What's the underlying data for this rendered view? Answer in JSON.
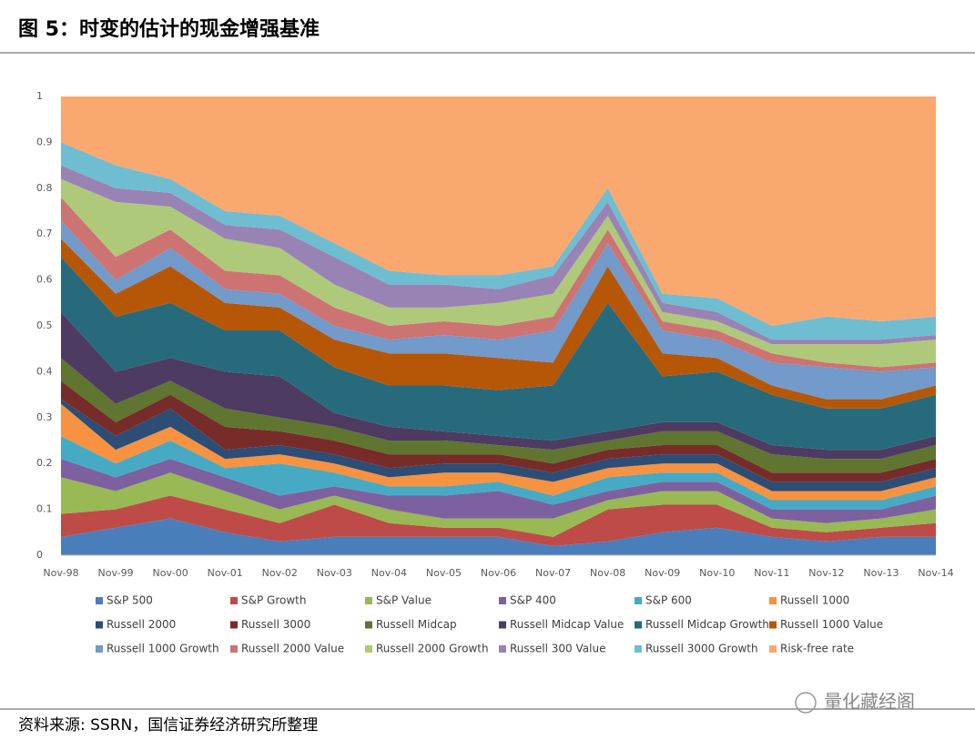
{
  "header": {
    "title": "图 5：时变的估计的现金增强基准"
  },
  "chart_data": {
    "type": "stacked-area",
    "categories": [
      "Nov-98",
      "Nov-99",
      "Nov-00",
      "Nov-01",
      "Nov-02",
      "Nov-03",
      "Nov-04",
      "Nov-05",
      "Nov-06",
      "Nov-07",
      "Nov-08",
      "Nov-09",
      "Nov-10",
      "Nov-11",
      "Nov-12",
      "Nov-13",
      "Nov-14"
    ],
    "ylim": [
      0,
      1
    ],
    "yticks": [
      0,
      0.1,
      0.2,
      0.3,
      0.4,
      0.5,
      0.6,
      0.7,
      0.8,
      0.9,
      1
    ],
    "series": [
      {
        "name": "S&P 500",
        "color": "#4a7ebb",
        "values": [
          0.04,
          0.06,
          0.08,
          0.05,
          0.03,
          0.04,
          0.04,
          0.04,
          0.04,
          0.02,
          0.03,
          0.05,
          0.06,
          0.04,
          0.03,
          0.04,
          0.04
        ]
      },
      {
        "name": "S&P Growth",
        "color": "#be4b48",
        "values": [
          0.05,
          0.04,
          0.05,
          0.05,
          0.04,
          0.07,
          0.03,
          0.02,
          0.02,
          0.02,
          0.07,
          0.06,
          0.05,
          0.02,
          0.02,
          0.02,
          0.03
        ]
      },
      {
        "name": "S&P Value",
        "color": "#98b954",
        "values": [
          0.08,
          0.04,
          0.05,
          0.04,
          0.03,
          0.02,
          0.03,
          0.02,
          0.02,
          0.04,
          0.02,
          0.03,
          0.03,
          0.02,
          0.02,
          0.02,
          0.03
        ]
      },
      {
        "name": "S&P 400",
        "color": "#7d60a0",
        "values": [
          0.04,
          0.03,
          0.03,
          0.03,
          0.03,
          0.02,
          0.03,
          0.05,
          0.06,
          0.03,
          0.02,
          0.02,
          0.02,
          0.02,
          0.03,
          0.02,
          0.03
        ]
      },
      {
        "name": "S&P 600",
        "color": "#46aac5",
        "values": [
          0.05,
          0.03,
          0.04,
          0.02,
          0.07,
          0.03,
          0.02,
          0.02,
          0.02,
          0.02,
          0.03,
          0.02,
          0.02,
          0.02,
          0.02,
          0.02,
          0.02
        ]
      },
      {
        "name": "Russell 1000",
        "color": "#f69240",
        "values": [
          0.07,
          0.03,
          0.03,
          0.02,
          0.02,
          0.02,
          0.02,
          0.03,
          0.02,
          0.03,
          0.02,
          0.02,
          0.02,
          0.02,
          0.02,
          0.02,
          0.02
        ]
      },
      {
        "name": "Russell 2000",
        "color": "#2c4d75",
        "values": [
          0.01,
          0.03,
          0.04,
          0.02,
          0.02,
          0.02,
          0.02,
          0.02,
          0.02,
          0.02,
          0.02,
          0.02,
          0.02,
          0.02,
          0.02,
          0.02,
          0.02
        ]
      },
      {
        "name": "Russell 3000",
        "color": "#772c2a",
        "values": [
          0.04,
          0.03,
          0.03,
          0.05,
          0.03,
          0.03,
          0.03,
          0.02,
          0.02,
          0.02,
          0.02,
          0.02,
          0.02,
          0.02,
          0.02,
          0.02,
          0.02
        ]
      },
      {
        "name": "Russell Midcap",
        "color": "#5f7530",
        "values": [
          0.05,
          0.04,
          0.03,
          0.04,
          0.03,
          0.03,
          0.03,
          0.03,
          0.02,
          0.03,
          0.02,
          0.03,
          0.03,
          0.04,
          0.03,
          0.03,
          0.03
        ]
      },
      {
        "name": "Russell Midcap Value",
        "color": "#4d3b62",
        "values": [
          0.1,
          0.07,
          0.05,
          0.08,
          0.09,
          0.03,
          0.03,
          0.02,
          0.02,
          0.02,
          0.02,
          0.02,
          0.02,
          0.02,
          0.02,
          0.02,
          0.02
        ]
      },
      {
        "name": "Russell Midcap Growth",
        "color": "#276a7c",
        "values": [
          0.12,
          0.12,
          0.12,
          0.09,
          0.1,
          0.1,
          0.09,
          0.1,
          0.1,
          0.12,
          0.28,
          0.1,
          0.11,
          0.11,
          0.09,
          0.09,
          0.09
        ]
      },
      {
        "name": "Russell 1000 Value",
        "color": "#b65708",
        "values": [
          0.04,
          0.05,
          0.08,
          0.06,
          0.05,
          0.06,
          0.07,
          0.07,
          0.07,
          0.05,
          0.08,
          0.05,
          0.03,
          0.02,
          0.02,
          0.02,
          0.02
        ]
      },
      {
        "name": "Russell 1000 Growth",
        "color": "#729aca",
        "values": [
          0.04,
          0.03,
          0.04,
          0.03,
          0.03,
          0.03,
          0.03,
          0.04,
          0.04,
          0.07,
          0.05,
          0.05,
          0.04,
          0.05,
          0.07,
          0.06,
          0.04
        ]
      },
      {
        "name": "Russell 2000 Value",
        "color": "#cd7371",
        "values": [
          0.05,
          0.05,
          0.04,
          0.04,
          0.04,
          0.04,
          0.03,
          0.03,
          0.03,
          0.03,
          0.03,
          0.02,
          0.02,
          0.02,
          0.01,
          0.01,
          0.01
        ]
      },
      {
        "name": "Russell 2000 Growth",
        "color": "#afc97a",
        "values": [
          0.04,
          0.12,
          0.05,
          0.07,
          0.06,
          0.05,
          0.04,
          0.03,
          0.05,
          0.05,
          0.03,
          0.02,
          0.02,
          0.02,
          0.04,
          0.05,
          0.05
        ]
      },
      {
        "name": "Russell 300 Value",
        "color": "#9983b5",
        "values": [
          0.03,
          0.03,
          0.03,
          0.03,
          0.04,
          0.06,
          0.05,
          0.05,
          0.03,
          0.04,
          0.03,
          0.02,
          0.02,
          0.01,
          0.01,
          0.01,
          0.01
        ]
      },
      {
        "name": "Russell 3000 Growth",
        "color": "#6fbdd1",
        "values": [
          0.05,
          0.05,
          0.03,
          0.03,
          0.03,
          0.03,
          0.03,
          0.02,
          0.03,
          0.02,
          0.03,
          0.02,
          0.03,
          0.03,
          0.05,
          0.04,
          0.04
        ]
      },
      {
        "name": "Risk-free rate",
        "color": "#f9a870",
        "values": [
          0.1,
          0.15,
          0.18,
          0.25,
          0.26,
          0.32,
          0.38,
          0.39,
          0.39,
          0.37,
          0.2,
          0.43,
          0.44,
          0.5,
          0.48,
          0.49,
          0.48
        ]
      }
    ]
  },
  "footer": {
    "source": "资料来源: SSRN，国信证券经济研究所整理",
    "watermark": "量化藏经阁"
  }
}
